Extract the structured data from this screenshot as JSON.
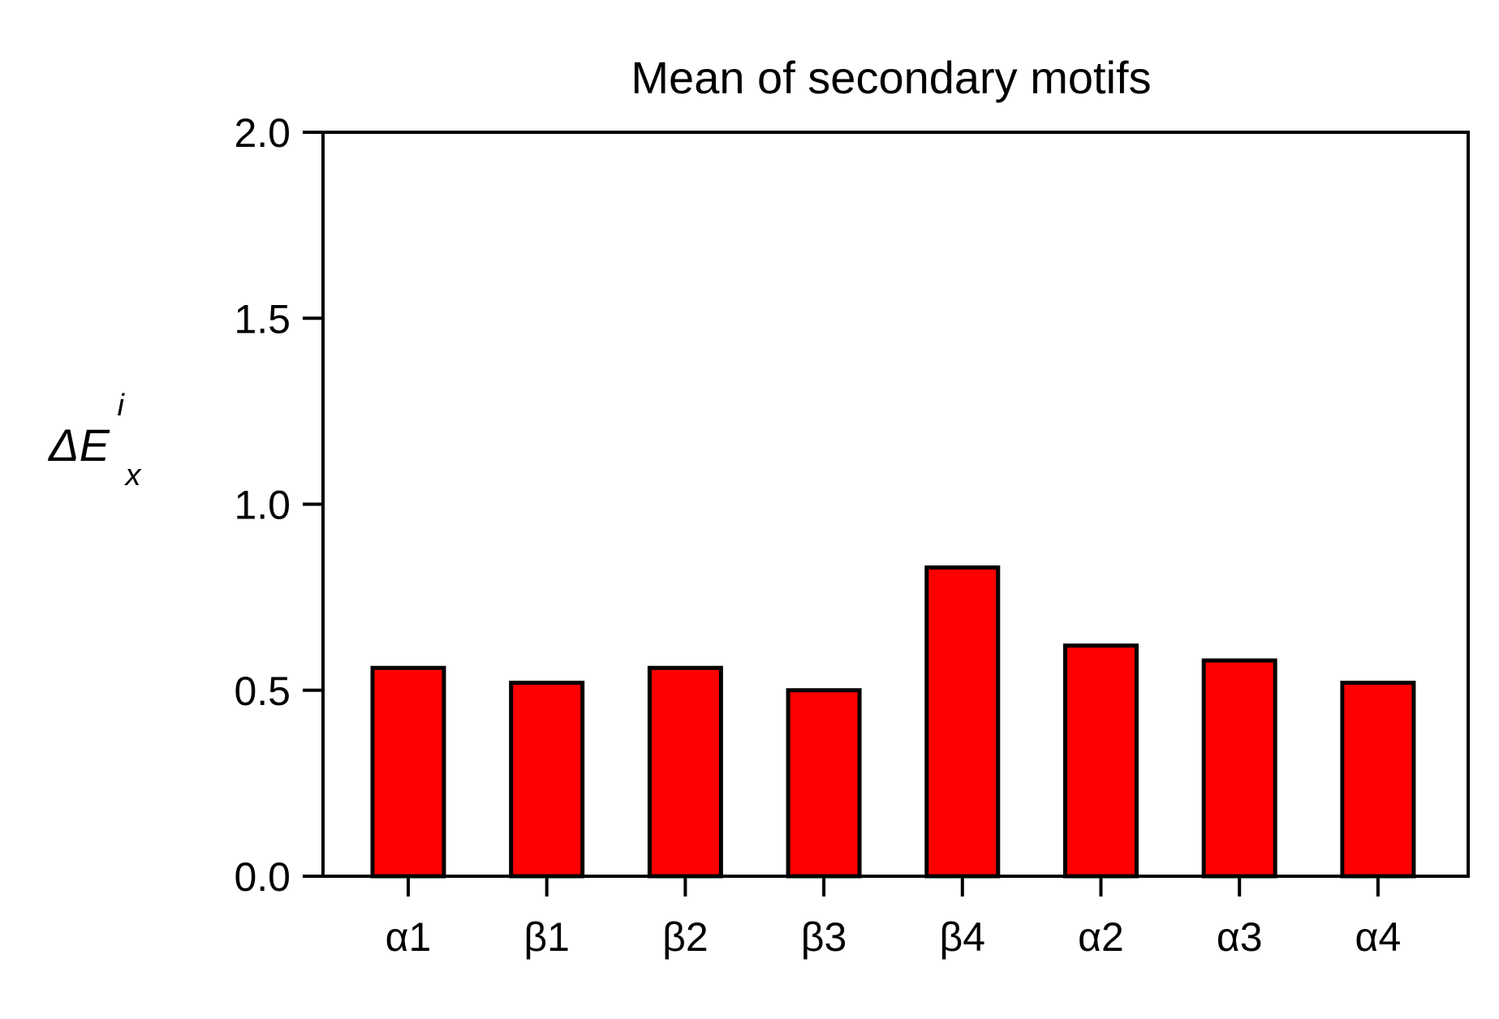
{
  "chart_data": {
    "type": "bar",
    "title": "Mean of secondary motifs",
    "ylabel": "ΔE",
    "ylabel_sup": "i",
    "ylabel_sub": "x",
    "xlabel": "",
    "categories": [
      "α1",
      "β1",
      "β2",
      "β3",
      "β4",
      "α2",
      "α3",
      "α4"
    ],
    "values": [
      0.56,
      0.52,
      0.56,
      0.5,
      0.83,
      0.62,
      0.58,
      0.52
    ],
    "ylim": [
      0,
      2.0
    ],
    "yticks": [
      "0.0",
      "0.5",
      "1.0",
      "1.5",
      "2.0"
    ],
    "bar_color": "#ff0000",
    "edge_color": "#000000",
    "grid": false
  }
}
